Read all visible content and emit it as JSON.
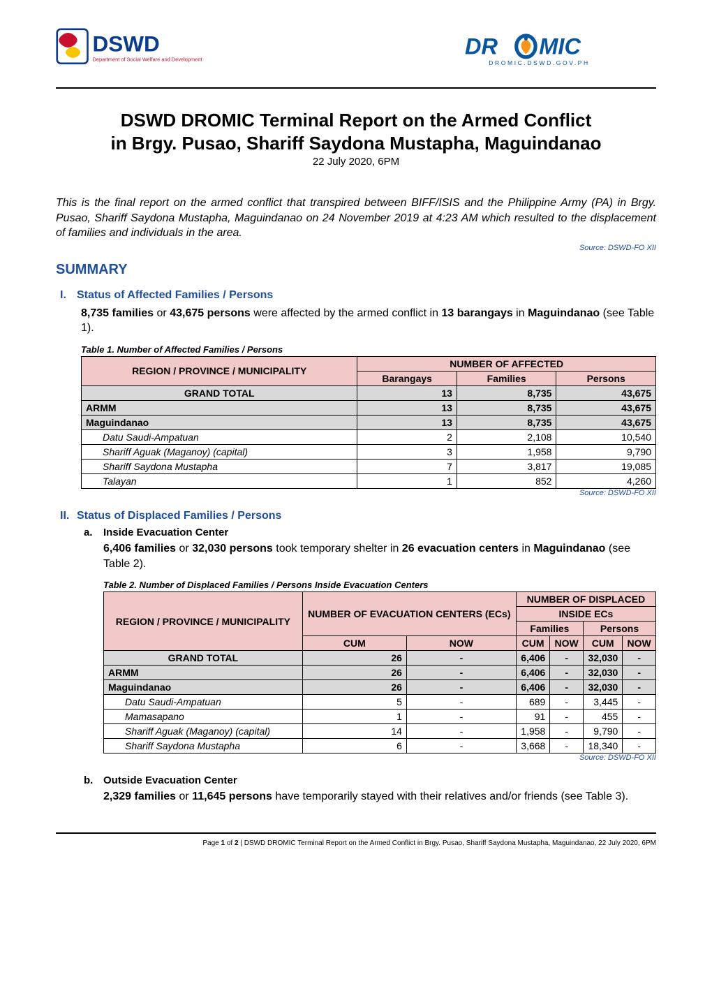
{
  "colors": {
    "dswd_blue": "#0a3b8f",
    "dswd_red": "#c8102e",
    "dromic_blue": "#0a55a0",
    "dromic_orange": "#f7941d",
    "section_blue": "#1f4e9c",
    "source_blue": "#1f4e9c",
    "table_header_bg": "#f2c9c9",
    "table_bold_bg": "#d9d9d9",
    "black": "#000000"
  },
  "logos": {
    "left_main": "DSWD",
    "left_sub": "Department of Social Welfare and Development",
    "right_main": "DROMIC",
    "right_sub": "DROMIC.DSWD.GOV.PH"
  },
  "title_line1": "DSWD DROMIC Terminal Report on the Armed Conflict",
  "title_line2": "in Brgy. Pusao, Shariff Saydona Mustapha, Maguindanao",
  "date_line": "22 July 2020, 6PM",
  "intro_paragraph": "This is the final report on the armed conflict that transpired between BIFF/ISIS and the Philippine Army (PA) in Brgy. Pusao, Shariff Saydona Mustapha, Maguindanao on 24 November 2019 at 4:23 AM which resulted to the displacement of families and individuals in the area.",
  "source_label": "Source: DSWD-FO XII",
  "summary_heading": "SUMMARY",
  "section1": {
    "num": "I.",
    "title": "Status of Affected Families / Persons",
    "body_pre": "8,735 families",
    "body_mid1": " or ",
    "body_bold2": "43,675 persons",
    "body_mid2": " were affected by the armed conflict in ",
    "body_bold3": "13 barangays",
    "body_mid3": " in ",
    "body_bold4": "Maguindanao",
    "body_post": " (see Table 1).",
    "table_caption": "Table 1. Number of Affected Families / Persons"
  },
  "table1": {
    "header_super": "NUMBER OF AFFECTED",
    "header_region": "REGION / PROVINCE / MUNICIPALITY",
    "header_barangays": "Barangays",
    "header_families": "Families",
    "header_persons": "Persons",
    "col_region_width": "48%",
    "col_other_width": "17.3%",
    "rows": [
      {
        "label": "GRAND TOTAL",
        "barangays": "13",
        "families": "8,735",
        "persons": "43,675",
        "type": "grand"
      },
      {
        "label": "ARMM",
        "barangays": "13",
        "families": "8,735",
        "persons": "43,675",
        "type": "bold"
      },
      {
        "label": "Maguindanao",
        "barangays": "13",
        "families": "8,735",
        "persons": "43,675",
        "type": "bold"
      },
      {
        "label": "Datu Saudi-Ampatuan",
        "barangays": "2",
        "families": "2,108",
        "persons": "10,540",
        "type": "indent"
      },
      {
        "label": "Shariff Aguak (Maganoy) (capital)",
        "barangays": "3",
        "families": "1,958",
        "persons": "9,790",
        "type": "indent"
      },
      {
        "label": "Shariff Saydona Mustapha",
        "barangays": "7",
        "families": "3,817",
        "persons": "19,085",
        "type": "indent"
      },
      {
        "label": "Talayan",
        "barangays": "1",
        "families": "852",
        "persons": "4,260",
        "type": "indent"
      }
    ]
  },
  "section2": {
    "num": "II.",
    "title": "Status of Displaced Families / Persons",
    "sub_a": {
      "letter": "a.",
      "title": "Inside Evacuation Center",
      "body_b1": "6,406 families",
      "body_m1": " or ",
      "body_b2": "32,030 persons",
      "body_m2": " took temporary shelter in ",
      "body_b3": "26 evacuation centers",
      "body_m3": " in ",
      "body_b4": "Maguindanao",
      "body_post": " (see Table 2).",
      "table_caption": "Table 2. Number of Displaced Families / Persons Inside Evacuation Centers"
    },
    "sub_b": {
      "letter": "b.",
      "title": "Outside Evacuation Center",
      "body_b1": "2,329 families",
      "body_m1": " or ",
      "body_b2": "11,645 persons",
      "body_m2": " have temporarily stayed with their relatives and/or friends (see Table 3)."
    }
  },
  "table2": {
    "header_region": "REGION / PROVINCE / MUNICIPALITY",
    "header_ec_super": "NUMBER OF EVACUATION CENTERS (ECs)",
    "header_disp_super": "NUMBER OF DISPLACED",
    "header_inside": "INSIDE ECs",
    "header_families": "Families",
    "header_persons": "Persons",
    "header_cum": "CUM",
    "header_now": "NOW",
    "rows": [
      {
        "label": "GRAND TOTAL",
        "ec_cum": "26",
        "ec_now": "-",
        "f_cum": "6,406",
        "f_now": "-",
        "p_cum": "32,030",
        "p_now": "-",
        "type": "grand"
      },
      {
        "label": "ARMM",
        "ec_cum": "26",
        "ec_now": "-",
        "f_cum": "6,406",
        "f_now": "-",
        "p_cum": "32,030",
        "p_now": "-",
        "type": "bold"
      },
      {
        "label": "Maguindanao",
        "ec_cum": "26",
        "ec_now": "-",
        "f_cum": "6,406",
        "f_now": "-",
        "p_cum": "32,030",
        "p_now": "-",
        "type": "bold"
      },
      {
        "label": "Datu Saudi-Ampatuan",
        "ec_cum": "5",
        "ec_now": "-",
        "f_cum": "689",
        "f_now": "-",
        "p_cum": "3,445",
        "p_now": "-",
        "type": "indent"
      },
      {
        "label": "Mamasapano",
        "ec_cum": "1",
        "ec_now": "-",
        "f_cum": "91",
        "f_now": "-",
        "p_cum": "455",
        "p_now": "-",
        "type": "indent"
      },
      {
        "label": "Shariff Aguak (Maganoy) (capital)",
        "ec_cum": "14",
        "ec_now": "-",
        "f_cum": "1,958",
        "f_now": "-",
        "p_cum": "9,790",
        "p_now": "-",
        "type": "indent"
      },
      {
        "label": "Shariff Saydona Mustapha",
        "ec_cum": "6",
        "ec_now": "-",
        "f_cum": "3,668",
        "f_now": "-",
        "p_cum": "18,340",
        "p_now": "-",
        "type": "indent"
      }
    ]
  },
  "footer": {
    "page_prefix": "Page ",
    "page_num": "1",
    "page_of": " of ",
    "page_total": "2",
    "text": " | DSWD DROMIC Terminal Report on the Armed Conflict in Brgy. Pusao, Shariff Saydona Mustapha, Maguindanao, 22 July 2020, 6PM"
  }
}
